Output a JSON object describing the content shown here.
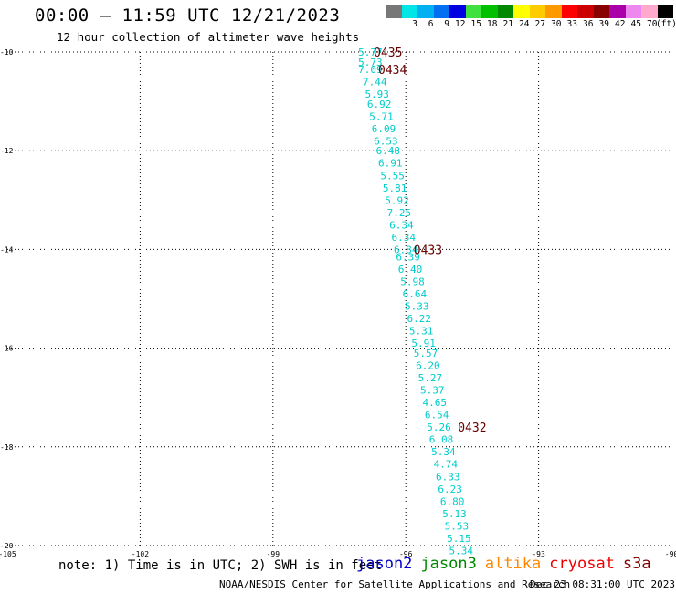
{
  "header": {
    "title": "00:00 — 11:59 UTC 12/21/2023",
    "subtitle": "12 hour collection of altimeter wave heights"
  },
  "legend": {
    "unit": "(ft)",
    "bins": [
      {
        "label": "",
        "color": "#777777"
      },
      {
        "label": "3",
        "color": "#00e5e5"
      },
      {
        "label": "6",
        "color": "#00b0f0"
      },
      {
        "label": "9",
        "color": "#0070f0"
      },
      {
        "label": "12",
        "color": "#0000e0"
      },
      {
        "label": "15",
        "color": "#40e040"
      },
      {
        "label": "18",
        "color": "#00c000"
      },
      {
        "label": "21",
        "color": "#008800"
      },
      {
        "label": "24",
        "color": "#ffff00"
      },
      {
        "label": "27",
        "color": "#ffcc00"
      },
      {
        "label": "30",
        "color": "#ff9900"
      },
      {
        "label": "33",
        "color": "#ff0000"
      },
      {
        "label": "36",
        "color": "#cc0000"
      },
      {
        "label": "39",
        "color": "#880000"
      },
      {
        "label": "42",
        "color": "#aa00aa"
      },
      {
        "label": "45",
        "color": "#ee88ee"
      },
      {
        "label": "70",
        "color": "#ffaacc"
      },
      {
        "label": "",
        "color": "#000000"
      }
    ]
  },
  "footer": {
    "note": "note: 1) Time is in UTC; 2) SWH is in feet",
    "satellites": [
      {
        "name": "jason2",
        "color": "#0000cc"
      },
      {
        "name": "jason3",
        "color": "#008800"
      },
      {
        "name": "altika",
        "color": "#ff8800"
      },
      {
        "name": "cryosat",
        "color": "#ee0000"
      },
      {
        "name": "s3a",
        "color": "#880000"
      }
    ],
    "credit": "NOAA/NESDIS Center for Satellite Applications and Research",
    "generated": "Dec 23 08:31:00 UTC 2023"
  },
  "chart_data": {
    "type": "scatter",
    "xlim": [
      -105,
      -90
    ],
    "ylim": [
      -20,
      -10
    ],
    "x_ticks": [
      -105,
      -102,
      -99,
      -96,
      -93,
      -90
    ],
    "y_ticks": [
      -10,
      -12,
      -14,
      -16,
      -18,
      -20
    ],
    "grid": true,
    "label_color": "#00cccc",
    "time_color": "#660000",
    "points": [
      {
        "x": -96.8,
        "y": -10.0,
        "label": "5.77"
      },
      {
        "x": -96.8,
        "y": -10.2,
        "label": "5.73"
      },
      {
        "x": -96.8,
        "y": -10.35,
        "label": "7.09"
      },
      {
        "x": -96.7,
        "y": -10.6,
        "label": "7.44"
      },
      {
        "x": -96.65,
        "y": -10.85,
        "label": "5.93"
      },
      {
        "x": -96.6,
        "y": -11.05,
        "label": "6.92"
      },
      {
        "x": -96.55,
        "y": -11.3,
        "label": "5.71"
      },
      {
        "x": -96.5,
        "y": -11.55,
        "label": "6.09"
      },
      {
        "x": -96.45,
        "y": -11.8,
        "label": "6.53"
      },
      {
        "x": -96.4,
        "y": -12.0,
        "label": "6.48"
      },
      {
        "x": -96.35,
        "y": -12.25,
        "label": "6.91"
      },
      {
        "x": -96.3,
        "y": -12.5,
        "label": "5.55"
      },
      {
        "x": -96.25,
        "y": -12.75,
        "label": "5.81"
      },
      {
        "x": -96.2,
        "y": -13.0,
        "label": "5.92"
      },
      {
        "x": -96.15,
        "y": -13.25,
        "label": "7.25"
      },
      {
        "x": -96.1,
        "y": -13.5,
        "label": "6.34"
      },
      {
        "x": -96.05,
        "y": -13.75,
        "label": "6.34"
      },
      {
        "x": -96.0,
        "y": -14.0,
        "label": "6.84"
      },
      {
        "x": -95.95,
        "y": -14.15,
        "label": "6.39"
      },
      {
        "x": -95.9,
        "y": -14.4,
        "label": "6.40"
      },
      {
        "x": -95.85,
        "y": -14.65,
        "label": "5.98"
      },
      {
        "x": -95.8,
        "y": -14.9,
        "label": "6.64"
      },
      {
        "x": -95.75,
        "y": -15.15,
        "label": "5.33"
      },
      {
        "x": -95.7,
        "y": -15.4,
        "label": "6.22"
      },
      {
        "x": -95.65,
        "y": -15.65,
        "label": "5.31"
      },
      {
        "x": -95.6,
        "y": -15.9,
        "label": "5.91"
      },
      {
        "x": -95.55,
        "y": -16.1,
        "label": "5.57"
      },
      {
        "x": -95.5,
        "y": -16.35,
        "label": "6.20"
      },
      {
        "x": -95.45,
        "y": -16.6,
        "label": "5.27"
      },
      {
        "x": -95.4,
        "y": -16.85,
        "label": "5.37"
      },
      {
        "x": -95.35,
        "y": -17.1,
        "label": "4.65"
      },
      {
        "x": -95.3,
        "y": -17.35,
        "label": "6.54"
      },
      {
        "x": -95.25,
        "y": -17.6,
        "label": "5.26"
      },
      {
        "x": -95.2,
        "y": -17.85,
        "label": "6.08"
      },
      {
        "x": -95.15,
        "y": -18.1,
        "label": "5.34"
      },
      {
        "x": -95.1,
        "y": -18.35,
        "label": "4.74"
      },
      {
        "x": -95.05,
        "y": -18.6,
        "label": "6.33"
      },
      {
        "x": -95.0,
        "y": -18.85,
        "label": "6.23"
      },
      {
        "x": -94.95,
        "y": -19.1,
        "label": "6.80"
      },
      {
        "x": -94.9,
        "y": -19.35,
        "label": "5.13"
      },
      {
        "x": -94.85,
        "y": -19.6,
        "label": "5.53"
      },
      {
        "x": -94.8,
        "y": -19.85,
        "label": "5.15"
      },
      {
        "x": -94.75,
        "y": -20.1,
        "label": "5.34"
      }
    ],
    "time_labels": [
      {
        "x": -96.4,
        "y": -10.0,
        "label": "0435"
      },
      {
        "x": -96.3,
        "y": -10.35,
        "label": "0434"
      },
      {
        "x": -95.5,
        "y": -14.0,
        "label": "0433"
      },
      {
        "x": -94.5,
        "y": -17.6,
        "label": "0432"
      }
    ]
  }
}
